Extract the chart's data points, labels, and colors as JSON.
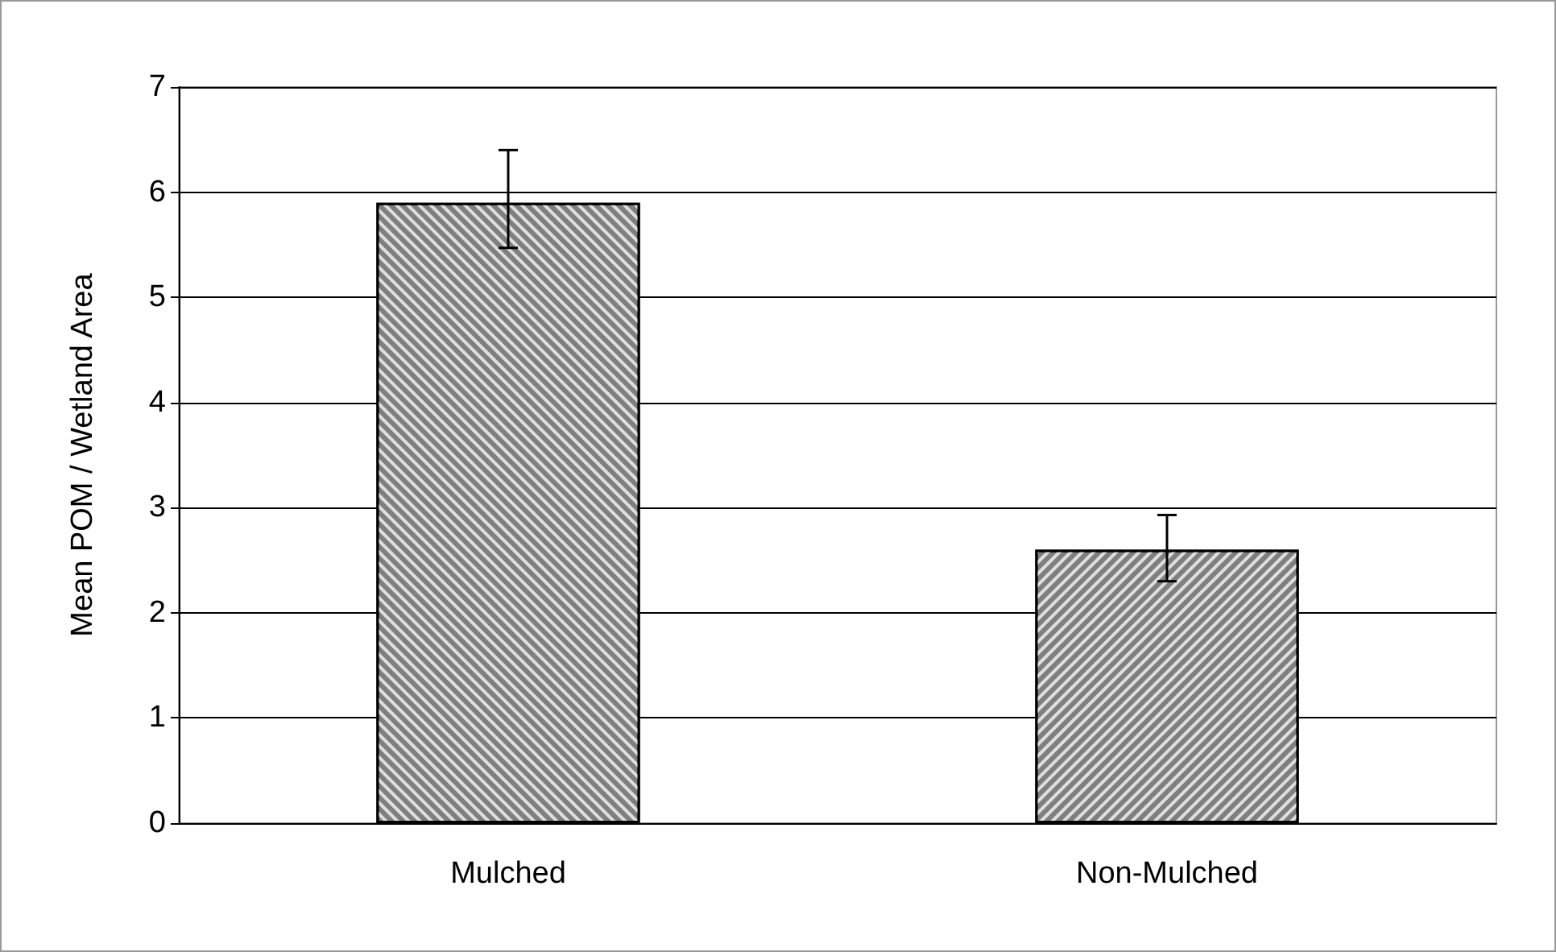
{
  "chart_data": {
    "type": "bar",
    "ylabel": "Mean POM / Wetland Area",
    "categories": [
      "Mulched",
      "Non-Mulched"
    ],
    "values": [
      5.9,
      2.6
    ],
    "errors": [
      [
        5.47,
        6.4
      ],
      [
        2.3,
        2.93
      ]
    ],
    "colors": [
      "#7f7f7f",
      "#7f7f7f"
    ],
    "ylim": [
      0,
      7
    ],
    "yticks": [
      0,
      1,
      2,
      3,
      4,
      5,
      6,
      7
    ],
    "grid": "y"
  }
}
